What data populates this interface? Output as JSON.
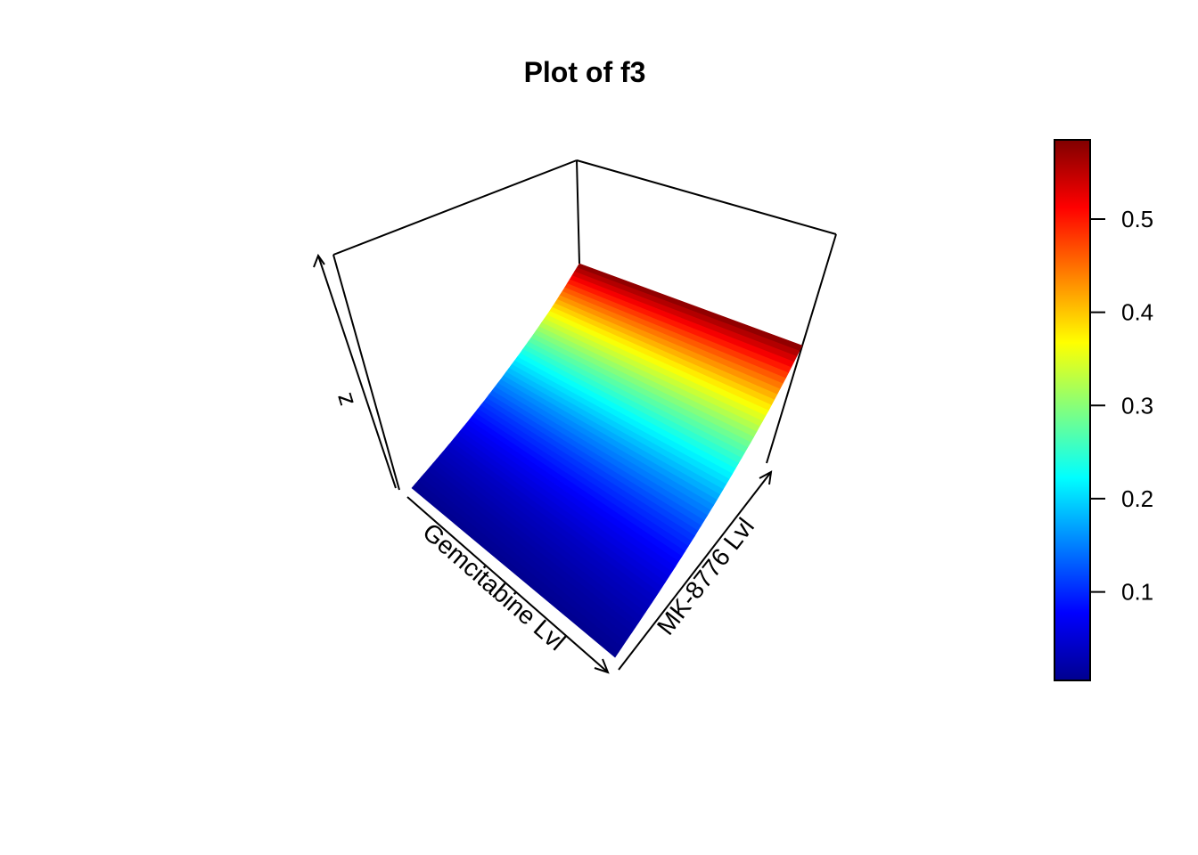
{
  "chart_data": {
    "type": "surface",
    "title": "Plot of f3",
    "xlabel": "Gemcitabine Lvl",
    "ylabel": "MK-8776 Lvl",
    "zlabel": "z",
    "surface_profile": {
      "x_fraction": [
        0.0,
        0.1,
        0.2,
        0.3,
        0.4,
        0.5,
        0.6,
        0.7,
        0.8,
        0.9,
        1.0
      ],
      "z": [
        0.005,
        0.02,
        0.04,
        0.07,
        0.11,
        0.16,
        0.22,
        0.29,
        0.37,
        0.47,
        0.585
      ]
    },
    "colorbar": {
      "min": 0.005,
      "max": 0.585,
      "ticks": [
        "0.1",
        "0.2",
        "0.3",
        "0.4",
        "0.5"
      ],
      "tick_values": [
        0.1,
        0.2,
        0.3,
        0.4,
        0.5
      ],
      "colormap": [
        "#00008f",
        "#0000ff",
        "#0080ff",
        "#00ffff",
        "#80ff80",
        "#ffff00",
        "#ff8000",
        "#ff0000",
        "#800000"
      ]
    }
  }
}
